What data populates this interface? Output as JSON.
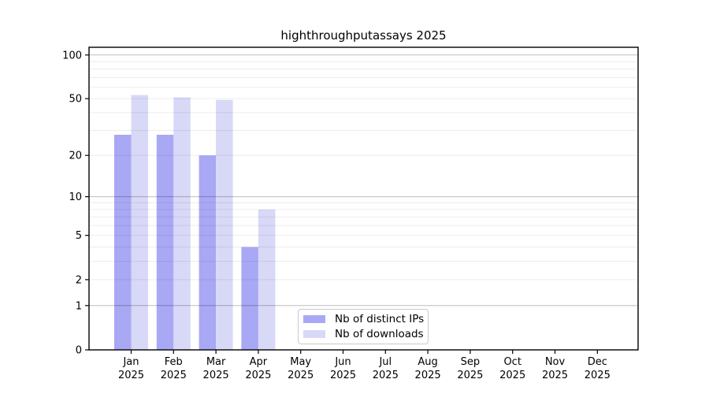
{
  "figure": {
    "title": "highthroughputassays 2025"
  },
  "legend": {
    "items": [
      {
        "label": "Nb of distinct IPs",
        "color": "#a8a8f5"
      },
      {
        "label": "Nb of downloads",
        "color": "#d8d8f7"
      }
    ]
  },
  "chart_data": {
    "type": "bar",
    "title": "highthroughputassays 2025",
    "categories": [
      "Jan",
      "Feb",
      "Mar",
      "Apr",
      "May",
      "Jun",
      "Jul",
      "Aug",
      "Sep",
      "Oct",
      "Nov",
      "Dec"
    ],
    "year": "2025",
    "series": [
      {
        "name": "Nb of distinct IPs",
        "color": "#a8a8f5",
        "values": [
          28,
          28,
          20,
          4,
          null,
          null,
          null,
          null,
          null,
          null,
          null,
          null
        ]
      },
      {
        "name": "Nb of downloads",
        "color": "#d8d8f7",
        "values": [
          53,
          51,
          49,
          8,
          null,
          null,
          null,
          null,
          null,
          null,
          null,
          null
        ]
      }
    ],
    "xlabel": "",
    "ylabel": "",
    "yscale": "log1p",
    "ylim": [
      0,
      113
    ],
    "yticks": [
      0,
      1,
      2,
      5,
      10,
      20,
      50,
      100
    ],
    "major_gridlines": [
      1,
      10,
      100
    ],
    "minor_gridlines": [
      2,
      3,
      4,
      5,
      6,
      7,
      8,
      9,
      20,
      30,
      40,
      50,
      60,
      70,
      80,
      90
    ],
    "grid": true,
    "legend_position": "lower center"
  }
}
